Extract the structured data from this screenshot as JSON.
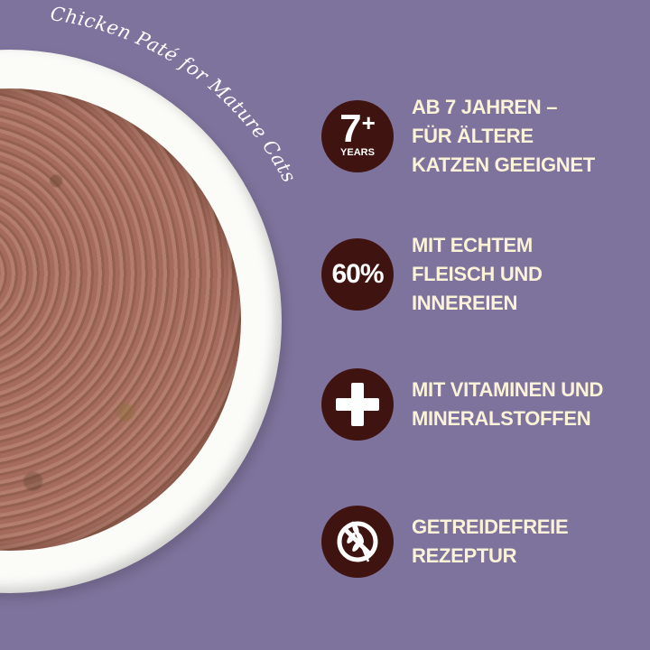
{
  "product_label": "Chicken Paté for Mature Cats",
  "colors": {
    "background": "#7e739c",
    "badge": "#3f1410",
    "text": "#fbf2d8"
  },
  "features": [
    {
      "badge_main": "7",
      "badge_sup": "+",
      "badge_sub": "YEARS",
      "lines": [
        "AB 7 JAHREN –",
        "FÜR ÄLTERE",
        "KATZEN GEEIGNET"
      ]
    },
    {
      "badge_main": "60%",
      "lines": [
        "MIT ECHTEM",
        "FLEISCH UND",
        "INNEREIEN"
      ]
    },
    {
      "icon": "plus-icon",
      "lines": [
        "MIT VITAMINEN UND",
        "MINERALSTOFFEN"
      ]
    },
    {
      "icon": "grain-free-icon",
      "lines": [
        "GETREIDEFREIE",
        "REZEPTUR"
      ]
    }
  ]
}
